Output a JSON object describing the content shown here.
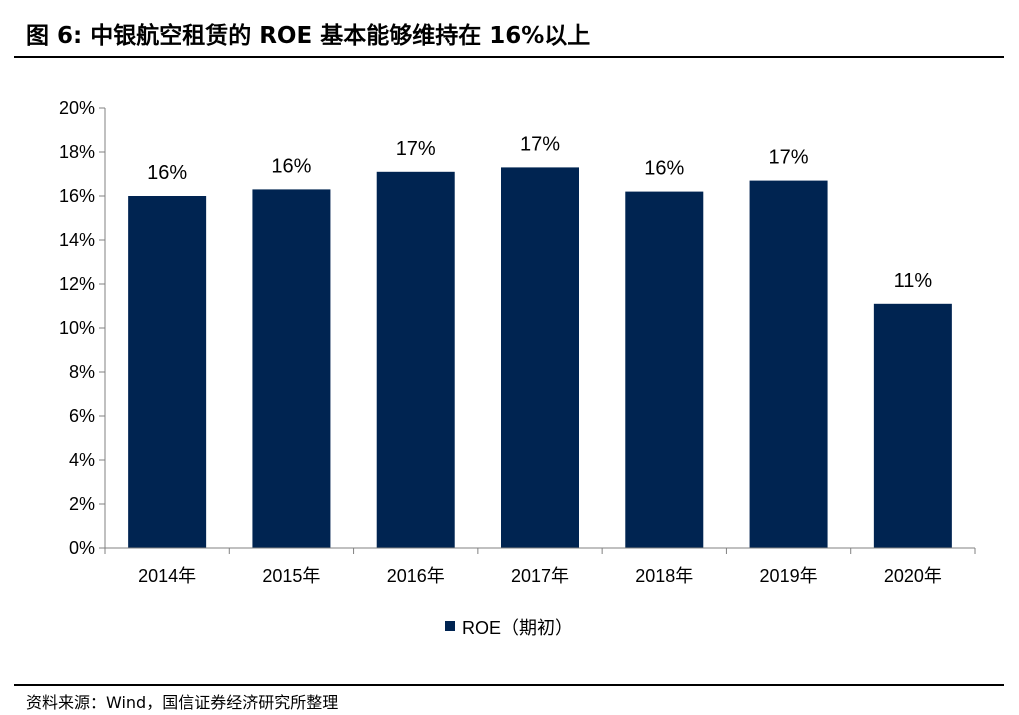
{
  "figure": {
    "title": "图 6:  中银航空租赁的 ROE 基本能够维持在 16%以上",
    "source": "资料来源：Wind，国信证券经济研究所整理"
  },
  "chart_data": {
    "type": "bar",
    "categories": [
      "2014年",
      "2015年",
      "2016年",
      "2017年",
      "2018年",
      "2019年",
      "2020年"
    ],
    "series": [
      {
        "name": "ROE（期初）",
        "values": [
          16.0,
          16.3,
          17.1,
          17.3,
          16.2,
          16.7,
          11.1
        ],
        "labels": [
          "16%",
          "16%",
          "17%",
          "17%",
          "16%",
          "17%",
          "11%"
        ],
        "color": "#002451"
      }
    ],
    "y_ticks": [
      "0%",
      "2%",
      "4%",
      "6%",
      "8%",
      "10%",
      "12%",
      "14%",
      "16%",
      "18%",
      "20%"
    ],
    "ylim": [
      0,
      20
    ],
    "legend_position": "bottom",
    "grid": false
  }
}
